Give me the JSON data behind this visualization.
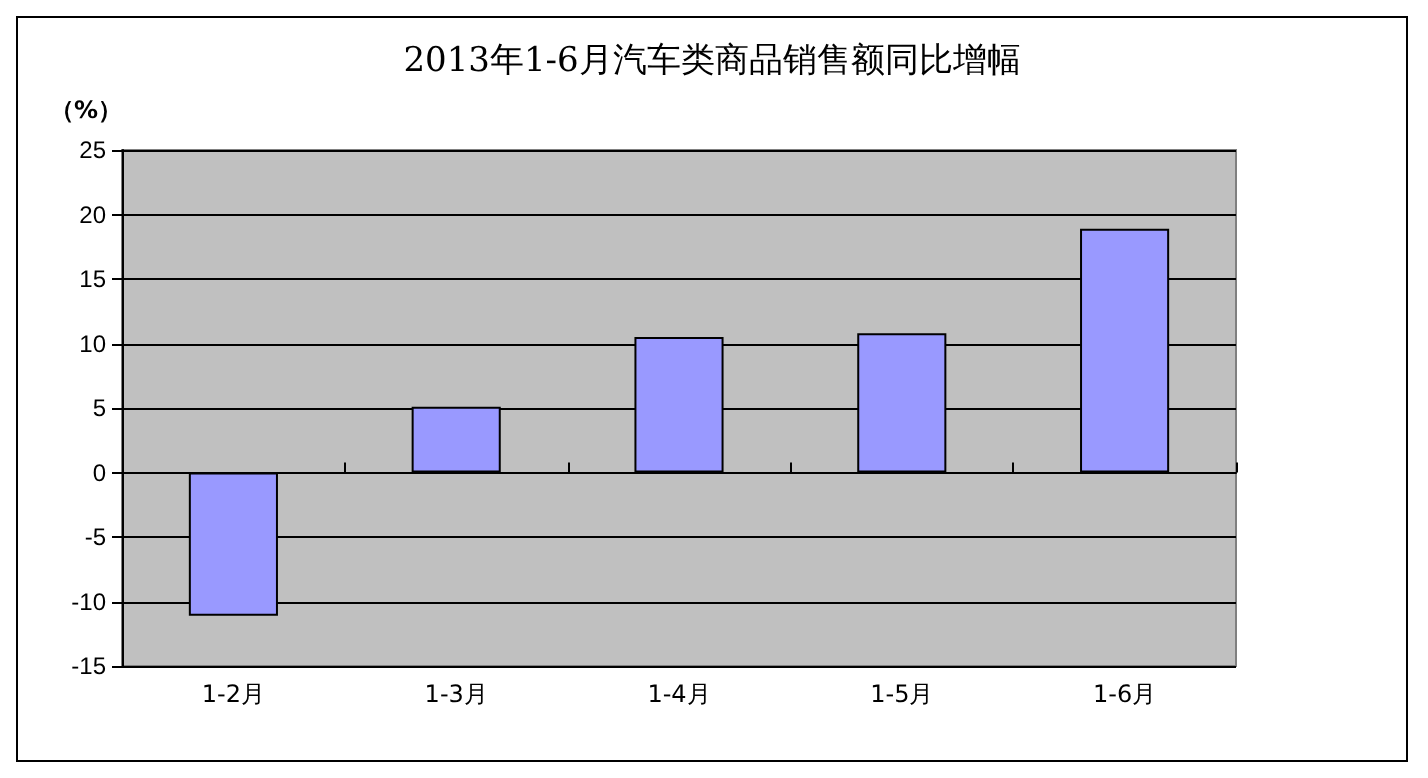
{
  "chart_data": {
    "type": "bar",
    "title": "2013年1-6月汽车类商品销售额同比增幅",
    "ylabel": "（%）",
    "categories": [
      "1-2月",
      "1-3月",
      "1-4月",
      "1-5月",
      "1-6月"
    ],
    "values": [
      -11.1,
      5.1,
      10.5,
      10.8,
      18.9
    ],
    "color": "#9999ff",
    "ylim": [
      -15,
      25
    ],
    "yticks": [
      -15,
      -10,
      -5,
      0,
      5,
      10,
      15,
      20,
      25
    ],
    "grid": "y"
  }
}
